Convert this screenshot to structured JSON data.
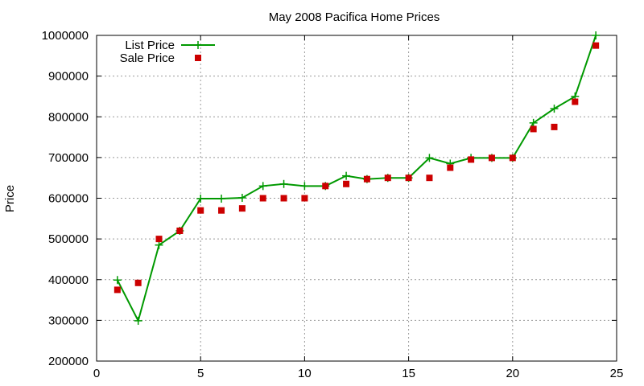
{
  "chart_data": {
    "type": "line",
    "title": "May 2008 Pacifica Home Prices",
    "xlabel": "",
    "ylabel": "Price",
    "xlim": [
      0,
      25
    ],
    "ylim": [
      200000,
      1000000
    ],
    "x_ticks": [
      0,
      5,
      10,
      15,
      20,
      25
    ],
    "y_ticks": [
      200000,
      300000,
      400000,
      500000,
      600000,
      700000,
      800000,
      900000,
      1000000
    ],
    "grid": true,
    "legend_position": "top-left",
    "series": [
      {
        "name": "List Price",
        "style": "line-with-plus-markers",
        "color": "#009900",
        "x": [
          1,
          2,
          3,
          4,
          5,
          6,
          7,
          8,
          9,
          10,
          11,
          12,
          13,
          14,
          15,
          16,
          17,
          18,
          19,
          20,
          21,
          22,
          23,
          24
        ],
        "values": [
          399000,
          299000,
          485000,
          520000,
          599000,
          599000,
          601000,
          630000,
          635000,
          630000,
          630000,
          655000,
          647000,
          650000,
          650000,
          699000,
          685000,
          699000,
          699000,
          699000,
          785000,
          820000,
          850000,
          1000000
        ]
      },
      {
        "name": "Sale Price",
        "style": "square-markers",
        "color": "#cc0000",
        "x": [
          1,
          2,
          3,
          4,
          5,
          6,
          7,
          8,
          9,
          10,
          11,
          12,
          13,
          14,
          15,
          16,
          17,
          18,
          19,
          20,
          21,
          22,
          23,
          24
        ],
        "values": [
          375000,
          392000,
          500000,
          520000,
          570000,
          570000,
          575000,
          600000,
          600000,
          600000,
          630000,
          635000,
          647000,
          650000,
          650000,
          650000,
          675000,
          695000,
          699000,
          699000,
          770000,
          775000,
          837000,
          975000
        ]
      }
    ]
  }
}
